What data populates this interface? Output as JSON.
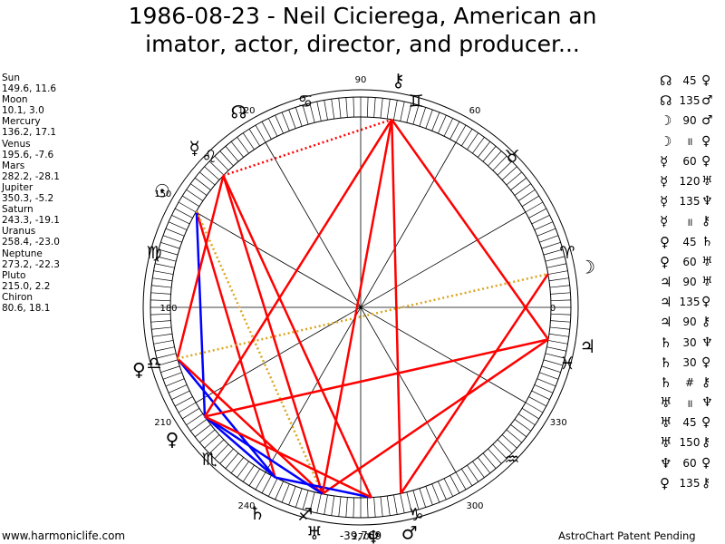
{
  "title_line1": "1986-08-23 - Neil Cicierega, American an",
  "title_line2": "imator, actor, director, and producer...",
  "planets": [
    {
      "name": "Sun",
      "coords": "149.6, 11.6"
    },
    {
      "name": "Moon",
      "coords": "10.1, 3.0"
    },
    {
      "name": "Mercury",
      "coords": "136.2, 17.1"
    },
    {
      "name": "Venus",
      "coords": "195.6, -7.6"
    },
    {
      "name": "Mars",
      "coords": "282.2, -28.1"
    },
    {
      "name": "Jupiter",
      "coords": "350.3, -5.2"
    },
    {
      "name": "Saturn",
      "coords": "243.3, -19.1"
    },
    {
      "name": "Uranus",
      "coords": "258.4, -23.0"
    },
    {
      "name": "Neptune",
      "coords": "273.2, -22.3"
    },
    {
      "name": "Pluto",
      "coords": "215.0, 2.2"
    },
    {
      "name": "Chiron",
      "coords": "80.6, 18.1"
    }
  ],
  "aspects": [
    {
      "p1": "☊",
      "val": "45",
      "p2": "♀",
      "c1": "#000000",
      "c2": "#000000"
    },
    {
      "p1": "☊",
      "val": "135",
      "p2": "♂",
      "c1": "#000000",
      "c2": "#000000"
    },
    {
      "p1": "☽",
      "val": "90",
      "p2": "♂",
      "c1": "#000000",
      "c2": "#000000"
    },
    {
      "p1": "☽",
      "val": "॥",
      "p2": "♀",
      "c1": "#000000",
      "c2": "#000000"
    },
    {
      "p1": "☿",
      "val": "60",
      "p2": "♀",
      "c1": "#000000",
      "c2": "#000000"
    },
    {
      "p1": "☿",
      "val": "120",
      "p2": "♅",
      "c1": "#000000",
      "c2": "#000000"
    },
    {
      "p1": "☿",
      "val": "135",
      "p2": "♆",
      "c1": "#000000",
      "c2": "#000000"
    },
    {
      "p1": "☿",
      "val": "॥",
      "p2": "⚷",
      "c1": "#000000",
      "c2": "#000000"
    },
    {
      "p1": "♀",
      "val": "45",
      "p2": "♄",
      "c1": "#000000",
      "c2": "#000000"
    },
    {
      "p1": "♀",
      "val": "60",
      "p2": "♅",
      "c1": "#000000",
      "c2": "#000000"
    },
    {
      "p1": "♃",
      "val": "90",
      "p2": "♅",
      "c1": "#000000",
      "c2": "#000000"
    },
    {
      "p1": "♃",
      "val": "135",
      "p2": "♀",
      "c1": "#000000",
      "c2": "#000000"
    },
    {
      "p1": "♃",
      "val": "90",
      "p2": "⚷",
      "c1": "#000000",
      "c2": "#000000"
    },
    {
      "p1": "♄",
      "val": "30",
      "p2": "♆",
      "c1": "#000000",
      "c2": "#000000"
    },
    {
      "p1": "♄",
      "val": "30",
      "p2": "♀",
      "c1": "#000000",
      "c2": "#000000"
    },
    {
      "p1": "♄",
      "val": "#",
      "p2": "⚷",
      "c1": "#000000",
      "c2": "#000000"
    },
    {
      "p1": "♅",
      "val": "॥",
      "p2": "♆",
      "c1": "#000000",
      "c2": "#000000"
    },
    {
      "p1": "♅",
      "val": "45",
      "p2": "♀",
      "c1": "#000000",
      "c2": "#000000"
    },
    {
      "p1": "♅",
      "val": "150",
      "p2": "⚷",
      "c1": "#000000",
      "c2": "#000000"
    },
    {
      "p1": "♆",
      "val": "60",
      "p2": "♀",
      "c1": "#000000",
      "c2": "#000000"
    },
    {
      "p1": "♀",
      "val": "135",
      "p2": "⚷",
      "c1": "#000000",
      "c2": "#000000"
    }
  ],
  "wheel": {
    "degree_labels": [
      {
        "text": "90",
        "deg": 90
      },
      {
        "text": "60",
        "deg": 60
      },
      {
        "text": "120",
        "deg": 120
      },
      {
        "text": "150",
        "deg": 150
      },
      {
        "text": "180",
        "deg": 180
      },
      {
        "text": "210",
        "deg": 210
      },
      {
        "text": "240",
        "deg": 240
      },
      {
        "text": "270",
        "deg": 270
      },
      {
        "text": "300",
        "deg": 300
      },
      {
        "text": "330",
        "deg": 330
      },
      {
        "text": "0",
        "deg": 0
      }
    ],
    "zodiac": [
      {
        "glyph": "♈",
        "deg": 15
      },
      {
        "glyph": "♉",
        "deg": 45
      },
      {
        "glyph": "♊",
        "deg": 75
      },
      {
        "glyph": "♋",
        "deg": 105
      },
      {
        "glyph": "♌",
        "deg": 135
      },
      {
        "glyph": "♍",
        "deg": 165
      },
      {
        "glyph": "♎",
        "deg": 195
      },
      {
        "glyph": "♏",
        "deg": 225
      },
      {
        "glyph": "♐",
        "deg": 255
      },
      {
        "glyph": "♑",
        "deg": 285
      },
      {
        "glyph": "♒",
        "deg": 315
      },
      {
        "glyph": "♓",
        "deg": 345
      }
    ],
    "bodies": [
      {
        "name": "Sun",
        "glyph": "☉",
        "deg": 149.6
      },
      {
        "name": "Moon",
        "glyph": "☽",
        "deg": 10.1
      },
      {
        "name": "Mercury",
        "glyph": "☿",
        "deg": 136.2
      },
      {
        "name": "Venus",
        "glyph": "♀",
        "deg": 195.6
      },
      {
        "name": "Mars",
        "glyph": "♂",
        "deg": 282.2
      },
      {
        "name": "Jupiter",
        "glyph": "♃",
        "deg": 350.3
      },
      {
        "name": "Saturn",
        "glyph": "♄",
        "deg": 243.3
      },
      {
        "name": "Uranus",
        "glyph": "♅",
        "deg": 258.4
      },
      {
        "name": "Neptune",
        "glyph": "♆",
        "deg": 273.2
      },
      {
        "name": "Pluto",
        "glyph": "♀",
        "deg": 215.0
      },
      {
        "name": "Chiron",
        "glyph": "⚷",
        "deg": 80.6
      },
      {
        "name": "Node",
        "glyph": "☊",
        "deg": 122.0
      }
    ],
    "aspect_lines": [
      {
        "from": "Sun",
        "to": "Saturn",
        "type": "trine"
      },
      {
        "from": "Sun",
        "to": "Pluto",
        "type": "semisquare"
      },
      {
        "from": "Sun",
        "to": "Uranus",
        "type": "sextile-ish"
      },
      {
        "from": "Mercury",
        "to": "Venus",
        "type": "sextile"
      },
      {
        "from": "Mercury",
        "to": "Uranus",
        "type": "trine"
      },
      {
        "from": "Mercury",
        "to": "Chiron",
        "type": "dotted"
      },
      {
        "from": "Mercury",
        "to": "Neptune",
        "type": "sesquisquare"
      },
      {
        "from": "Venus",
        "to": "Saturn",
        "type": "semisquare"
      },
      {
        "from": "Venus",
        "to": "Uranus",
        "type": "sextile"
      },
      {
        "from": "Venus",
        "to": "Moon",
        "type": "parallel"
      },
      {
        "from": "Jupiter",
        "to": "Uranus",
        "type": "square"
      },
      {
        "from": "Jupiter",
        "to": "Chiron",
        "type": "square"
      },
      {
        "from": "Jupiter",
        "to": "Pluto",
        "type": "sesquisquare"
      },
      {
        "from": "Moon",
        "to": "Mars",
        "type": "square"
      },
      {
        "from": "Saturn",
        "to": "Neptune",
        "type": "semisextile"
      },
      {
        "from": "Saturn",
        "to": "Pluto",
        "type": "semisextile"
      },
      {
        "from": "Uranus",
        "to": "Chiron",
        "type": "quincunx"
      },
      {
        "from": "Uranus",
        "to": "Pluto",
        "type": "semisquare"
      },
      {
        "from": "Neptune",
        "to": "Pluto",
        "type": "sextile"
      },
      {
        "from": "Pluto",
        "to": "Chiron",
        "type": "sesquisquare"
      },
      {
        "from": "Mars",
        "to": "Chiron",
        "type": "square"
      }
    ],
    "bottom_value": "-39,769"
  },
  "footer_left": "www.harmoniclife.com",
  "footer_right": "AstroChart Patent Pending",
  "colors": {
    "red": "#ff0000",
    "blue": "#0000ff",
    "gold": "#daa520",
    "black": "#000000"
  }
}
